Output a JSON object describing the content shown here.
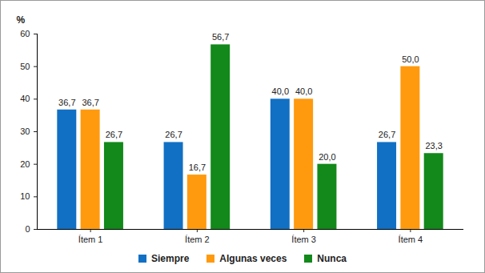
{
  "chart_data": {
    "type": "bar",
    "categories": [
      "Ítem 1",
      "Ítem 2",
      "Ítem 3",
      "Ítem 4"
    ],
    "series": [
      {
        "name": "Siempre",
        "color": "#1170c4",
        "values": [
          36.7,
          26.7,
          40.0,
          26.7
        ],
        "value_labels": [
          "36,7",
          "26,7",
          "40,0",
          "26,7"
        ]
      },
      {
        "name": "Algunas veces",
        "color": "#ff9a0e",
        "values": [
          36.7,
          16.7,
          40.0,
          50.0
        ],
        "value_labels": [
          "36,7",
          "16,7",
          "40,0",
          "50,0"
        ]
      },
      {
        "name": "Nunca",
        "color": "#12891a",
        "values": [
          26.7,
          56.7,
          20.0,
          23.3
        ],
        "value_labels": [
          "26,7",
          "56,7",
          "20,0",
          "23,3"
        ]
      }
    ],
    "ylabel": "%",
    "ylim": [
      0,
      60
    ],
    "yticks": [
      0,
      10,
      20,
      30,
      40,
      50,
      60
    ],
    "data_labels": true,
    "legend": "bottom",
    "grid": false
  }
}
